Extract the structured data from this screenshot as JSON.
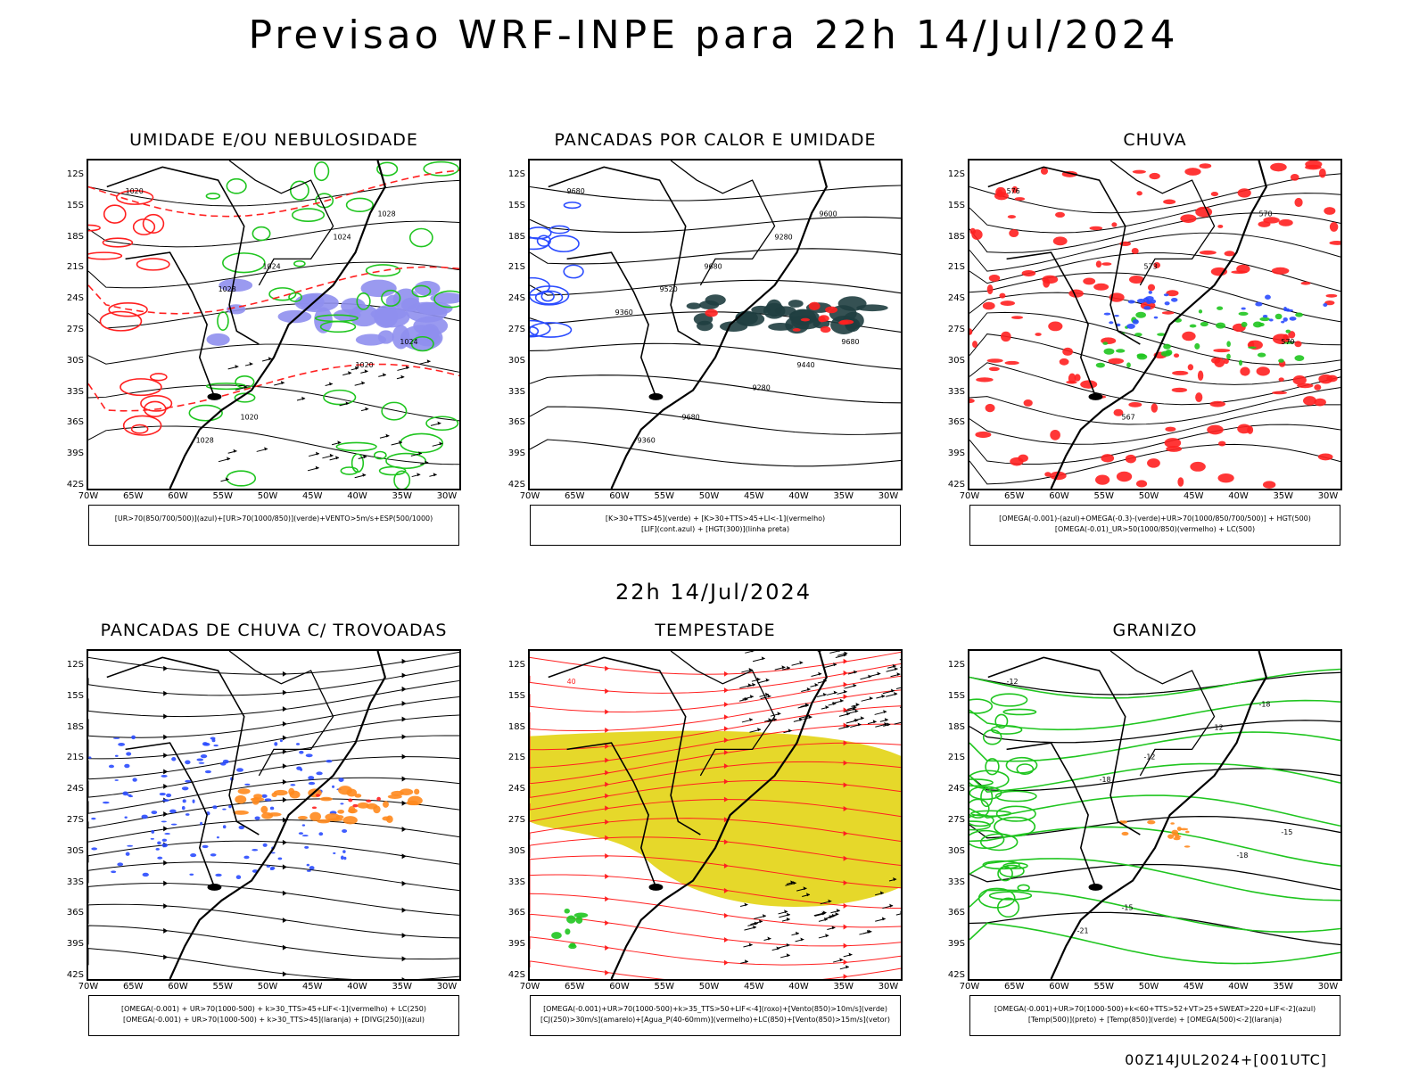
{
  "title": "Previsao WRF-INPE  para 22h 14/Jul/2024",
  "subtitle": "22h 14/Jul/2024",
  "footer": "00Z14JUL2024+[001UTC]",
  "lat_ticks": [
    "12S",
    "15S",
    "18S",
    "21S",
    "24S",
    "27S",
    "30S",
    "33S",
    "36S",
    "39S",
    "42S"
  ],
  "lon_ticks": [
    "70W",
    "65W",
    "60W",
    "55W",
    "50W",
    "45W",
    "40W",
    "35W",
    "30W"
  ],
  "colors": {
    "blue": "#2a4bff",
    "green": "#1fc51f",
    "red": "#ff2020",
    "orange": "#ff8a1e",
    "yellow": "#e6d82a",
    "darkteal": "#1f3e40",
    "lavender": "#8f8fee"
  },
  "panels": [
    {
      "title": "UMIDADE E/OU NEBULOSIDADE",
      "legend": [
        "[UR>70(850/700/500)](azul)+[UR>70(1000/850)](verde)+VENTO>5m/s+ESP(500/1000)"
      ],
      "labels": [
        "1020",
        "1024",
        "1024",
        "1020",
        "1028",
        "1028",
        "1020",
        "1028",
        "1024"
      ]
    },
    {
      "title": "PANCADAS POR CALOR E UMIDADE",
      "legend": [
        "[K>30+TTS>45](verde) + [K>30+TTS>45+LI<-1](vermelho)",
        "[LIF](cont.azul) + [HGT(300)](linha preta)"
      ],
      "labels": [
        "9680",
        "9680",
        "9680",
        "9680",
        "9600",
        "9520",
        "9440",
        "9360",
        "9280",
        "9360",
        "9280"
      ]
    },
    {
      "title": "CHUVA",
      "legend": [
        "[OMEGA(-0.001)-(azul)+OMEGA(-0.3)-(verde)+UR>70(1000/850/700/500)] + HGT(500)",
        "[OMEGA(-0.01)_UR>50(1000/850)(vermelho) + LC(500)"
      ],
      "labels": [
        "576",
        "573",
        "570",
        "567",
        "570"
      ]
    },
    {
      "title": "PANCADAS DE CHUVA C/ TROVOADAS",
      "legend": [
        "[OMEGA(-0.001) + UR>70(1000-500) + k>30_TTS>45+LIF<-1](vermelho) + LC(250)",
        "[OMEGA(-0.001) + UR>70(1000-500) + k>30_TTS>45](laranja) + [DIVG(250)](azul)"
      ],
      "labels": []
    },
    {
      "title": "TEMPESTADE",
      "legend": [
        "[OMEGA(-0.001)+UR>70(1000-500)+k>35_TTS>50+LIF<-4](roxo)+[Vento(850)>10m/s](verde)",
        "[CJ(250)>30m/s](amarelo)+[Agua_P(40-60mm)](vermelho)+LC(850)+[Vento(850)>15m/s](vetor)"
      ],
      "labels": [
        "40"
      ]
    },
    {
      "title": "GRANIZO",
      "legend": [
        "[OMEGA(-0.001)+UR>70(1000-500)+k<60+TTS>52+VT>25+SWEAT>220+LIF<-2](azul)",
        "[Temp(500)](preto) + [Temp(850)](verde) + [OMEGA(500)<-2](laranja)"
      ],
      "labels": [
        "-12",
        "-12",
        "-15",
        "-15",
        "-18",
        "-18",
        "-18",
        "-21",
        "12"
      ]
    }
  ]
}
